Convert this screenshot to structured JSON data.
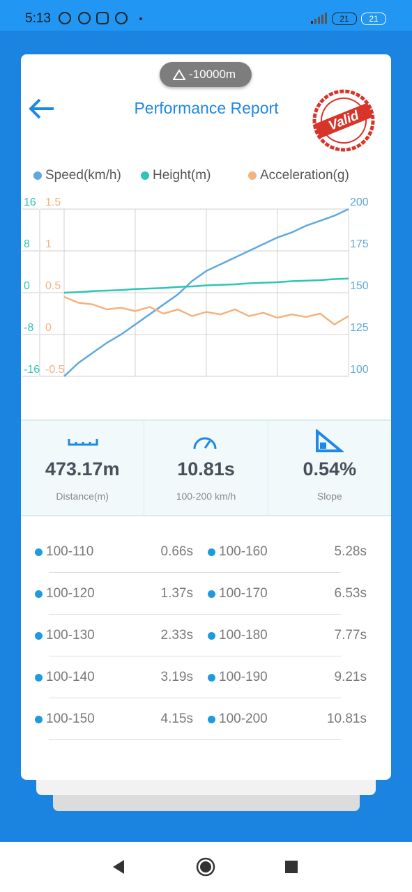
{
  "status_bar": {
    "time": "5:13",
    "battery": "21"
  },
  "altitude": "-10000m",
  "header": {
    "title": "Performance Report",
    "stamp": "Valid"
  },
  "chart_data": {
    "type": "line",
    "categories": [
      null,
      null,
      null,
      null,
      null,
      null,
      null,
      null,
      null,
      null,
      null,
      null,
      null,
      null,
      null,
      null,
      null,
      null,
      null,
      null,
      null
    ],
    "series": [
      {
        "name": "Speed(km/h)",
        "color": "#5fa8e0",
        "axis": "y2",
        "values": [
          100,
          108,
          114,
          120,
          125,
          131,
          137,
          143,
          149,
          157,
          163,
          167,
          171,
          175,
          179,
          183,
          186,
          190,
          193,
          196,
          200
        ]
      },
      {
        "name": "Height(m)",
        "color": "#2ec4b6",
        "axis": "y",
        "values": [
          0,
          0.1,
          0.3,
          0.4,
          0.5,
          0.7,
          0.8,
          0.9,
          1.1,
          1.2,
          1.4,
          1.5,
          1.6,
          1.8,
          1.9,
          2.0,
          2.2,
          2.3,
          2.4,
          2.6,
          2.7
        ]
      },
      {
        "name": "Acceleration(g)",
        "color": "#f4b27f",
        "axis": "y3",
        "values": [
          0.45,
          0.38,
          0.36,
          0.3,
          0.32,
          0.28,
          0.33,
          0.25,
          0.3,
          0.22,
          0.27,
          0.24,
          0.3,
          0.22,
          0.26,
          0.2,
          0.24,
          0.21,
          0.25,
          0.12,
          0.22
        ]
      }
    ],
    "ylim": [
      -16,
      16
    ],
    "yticks": [
      16,
      8,
      0,
      -8,
      -16
    ],
    "y2lim": [
      100,
      200
    ],
    "y2ticks": [
      200,
      175,
      150,
      125,
      100
    ],
    "y3lim": [
      -0.5,
      1.5
    ],
    "y3ticks": [
      1.5,
      1,
      0.5,
      0,
      -0.5
    ],
    "grid": true
  },
  "stats": [
    {
      "value": "473.17m",
      "label": "Distance(m)"
    },
    {
      "value": "10.81s",
      "label": "100-200 km/h"
    },
    {
      "value": "0.54%",
      "label": "Slope"
    }
  ],
  "splits": [
    {
      "range": "100-110",
      "time": "0.66s"
    },
    {
      "range": "100-120",
      "time": "1.37s"
    },
    {
      "range": "100-130",
      "time": "2.33s"
    },
    {
      "range": "100-140",
      "time": "3.19s"
    },
    {
      "range": "100-150",
      "time": "4.15s"
    },
    {
      "range": "100-160",
      "time": "5.28s"
    },
    {
      "range": "100-170",
      "time": "6.53s"
    },
    {
      "range": "100-180",
      "time": "7.77s"
    },
    {
      "range": "100-190",
      "time": "9.21s"
    },
    {
      "range": "100-200",
      "time": "10.81s"
    }
  ]
}
